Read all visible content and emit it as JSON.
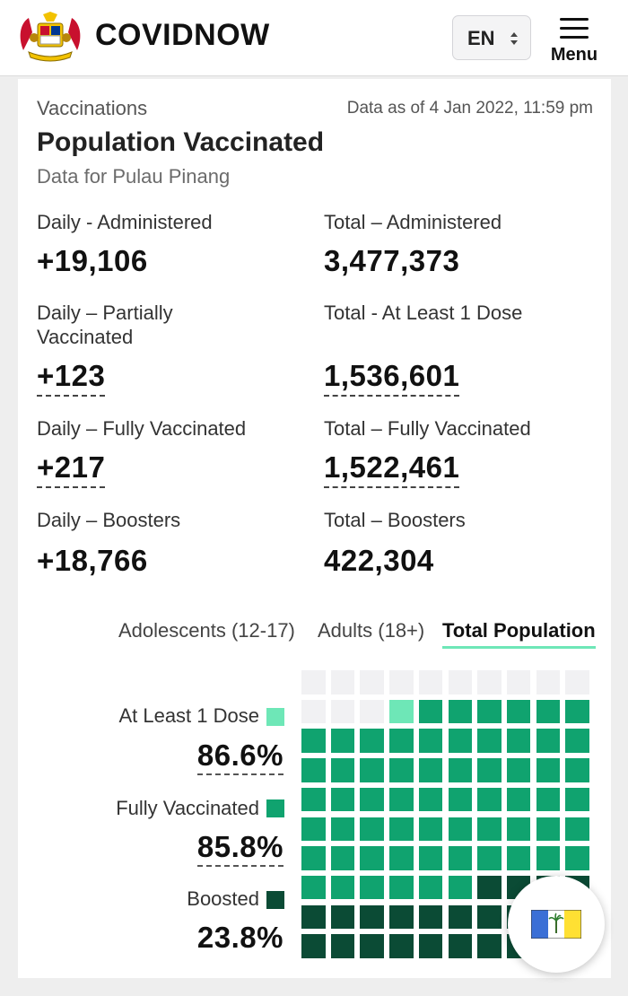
{
  "header": {
    "brand": "COVIDNOW",
    "language": "EN",
    "menu_label": "Menu",
    "logo_icon": "malaysia-coat-of-arms-icon"
  },
  "card": {
    "section": "Vaccinations",
    "as_of": "Data as of 4 Jan 2022, 11:59 pm",
    "title": "Population Vaccinated",
    "subtitle": "Data for Pulau Pinang"
  },
  "stats": {
    "daily_administered": {
      "label": "Daily - Administered",
      "value": "+19,106"
    },
    "total_administered": {
      "label": "Total – Administered",
      "value": "3,477,373"
    },
    "daily_partial": {
      "label": "Daily – Partially Vaccinated",
      "value": "+123"
    },
    "total_dose1": {
      "label": "Total - At Least 1 Dose",
      "value": "1,536,601"
    },
    "daily_full": {
      "label": "Daily – Fully Vaccinated",
      "value": "+217"
    },
    "total_full": {
      "label": "Total – Fully Vaccinated",
      "value": "1,522,461"
    },
    "daily_booster": {
      "label": "Daily – Boosters",
      "value": "+18,766"
    },
    "total_booster": {
      "label": "Total – Boosters",
      "value": "422,304"
    }
  },
  "tabs": {
    "adolescents": "Adolescents (12-17)",
    "adults": "Adults (18+)",
    "total": "Total Population",
    "active": "total"
  },
  "legend": {
    "dose1_label": "At Least 1 Dose",
    "dose1_pct": "86.6%",
    "full_label": "Fully Vaccinated",
    "full_pct": "85.8%",
    "booster_label": "Boosted",
    "booster_pct": "23.8%"
  },
  "waffle": {
    "grid": "10x10",
    "at_least_1_dose_pct": 86.6,
    "fully_vaccinated_pct": 85.8,
    "boosted_pct": 23.8
  },
  "colors": {
    "empty": "#f1f1f3",
    "dose1": "#6ee7b7",
    "full": "#10a36f",
    "booster": "#0b4b35",
    "accent": "#6ee7b7"
  },
  "fab": {
    "icon": "pulau-pinang-flag-icon"
  }
}
